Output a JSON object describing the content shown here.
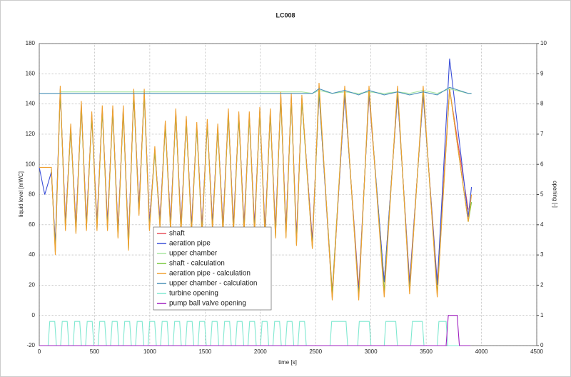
{
  "chart_data": {
    "type": "line",
    "title": "LC008",
    "x_label": "time [s]",
    "y_label": "liquid level [mWC]",
    "y2_label": "opening [-]",
    "xlim": [
      0,
      4500
    ],
    "xticks": [
      0,
      500,
      1000,
      1500,
      2000,
      2500,
      3000,
      3500,
      4000,
      4500
    ],
    "ylim": [
      -20,
      180
    ],
    "yticks": [
      -20,
      0,
      20,
      40,
      60,
      80,
      100,
      120,
      140,
      160,
      180
    ],
    "y2lim": [
      0,
      10
    ],
    "y2ticks": [
      0,
      1,
      2,
      3,
      4,
      5,
      6,
      7,
      8,
      9,
      10
    ],
    "grid": true,
    "series": [
      {
        "name": "shaft",
        "color": "#e8505b",
        "x": [
          0,
          50,
          110,
          145,
          190,
          237,
          285,
          332,
          380,
          427,
          475,
          522,
          570,
          617,
          665,
          712,
          760,
          807,
          855,
          902,
          950,
          997,
          1045,
          1092,
          1140,
          1187,
          1235,
          1282,
          1330,
          1377,
          1425,
          1472,
          1520,
          1567,
          1615,
          1662,
          1710,
          1757,
          1805,
          1852,
          1900,
          1947,
          1995,
          2042,
          2090,
          2137,
          2185,
          2232,
          2280,
          2327,
          2375,
          2470,
          2531,
          2650,
          2763,
          2890,
          2983,
          3120,
          3241,
          3350,
          3473,
          3600,
          3712,
          3880,
          3910
        ],
        "values": [
          null,
          null,
          95,
          46,
          148,
          62,
          123,
          60,
          138,
          62,
          131,
          62,
          135,
          62,
          135,
          57,
          135,
          49,
          146,
          72,
          146,
          62,
          108,
          64,
          125,
          62,
          133,
          60,
          128,
          60,
          124,
          59,
          126,
          62,
          123,
          60,
          133,
          60,
          131,
          60,
          131,
          60,
          134,
          57,
          133,
          57,
          144,
          57,
          143,
          52,
          142,
          50,
          147,
          16,
          146,
          18,
          146,
          22,
          146,
          22,
          146,
          22,
          150,
          70,
          null
        ]
      },
      {
        "name": "aeration pipe",
        "color": "#3b4fd8",
        "x": [
          0,
          50,
          110,
          145,
          190,
          237,
          285,
          332,
          380,
          427,
          475,
          522,
          570,
          617,
          665,
          712,
          760,
          807,
          855,
          902,
          950,
          997,
          1045,
          1092,
          1140,
          1187,
          1235,
          1282,
          1330,
          1377,
          1425,
          1472,
          1520,
          1567,
          1615,
          1662,
          1710,
          1757,
          1805,
          1852,
          1900,
          1947,
          1995,
          2042,
          2090,
          2137,
          2185,
          2232,
          2280,
          2327,
          2375,
          2470,
          2531,
          2650,
          2763,
          2890,
          2983,
          3120,
          3241,
          3350,
          3473,
          3600,
          3712,
          3880,
          3910
        ],
        "values": [
          98,
          80,
          95,
          47,
          150,
          60,
          125,
          58,
          140,
          60,
          133,
          60,
          137,
          60,
          137,
          55,
          137,
          47,
          148,
          70,
          148,
          60,
          110,
          62,
          127,
          60,
          135,
          58,
          130,
          58,
          126,
          57,
          128,
          60,
          125,
          58,
          135,
          58,
          133,
          58,
          133,
          58,
          136,
          55,
          135,
          55,
          146,
          55,
          145,
          50,
          144,
          48,
          148,
          12,
          147,
          15,
          148,
          22,
          147,
          20,
          147,
          20,
          170,
          65,
          85
        ]
      },
      {
        "name": "upper chamber",
        "color": "#a8e6a0",
        "x": [
          0,
          50,
          110,
          145,
          190,
          237,
          285,
          332,
          380,
          427,
          475,
          522,
          570,
          617,
          665,
          712,
          760,
          807,
          855,
          902,
          950,
          997,
          1045,
          1092,
          1140,
          1187,
          1235,
          1282,
          1330,
          1377,
          1425,
          1472,
          1520,
          1567,
          1615,
          1662,
          1710,
          1757,
          1805,
          1852,
          1900,
          1947,
          1995,
          2042,
          2090,
          2137,
          2185,
          2232,
          2280,
          2327,
          2375,
          2470,
          2531,
          2650,
          2763,
          2890,
          2983,
          3120,
          3241,
          3350,
          3473,
          3600,
          3712,
          3880,
          3910
        ],
        "values": [
          null,
          null,
          null,
          null,
          148,
          148,
          148,
          148,
          148,
          148,
          148,
          148,
          148,
          148,
          148,
          148,
          148,
          148,
          148,
          148,
          148,
          148,
          148,
          148,
          148,
          148,
          148,
          148,
          148,
          148,
          148,
          148,
          148,
          148,
          148,
          148,
          148,
          148,
          148,
          148,
          148,
          148,
          148,
          148,
          148,
          148,
          148,
          148,
          148,
          148,
          148,
          147,
          149,
          147,
          148,
          147,
          148,
          147,
          148,
          147,
          149,
          147,
          150,
          147,
          147
        ]
      },
      {
        "name": "shaft - calculation",
        "color": "#78c83a",
        "x": [
          0,
          50,
          110,
          145,
          190,
          237,
          285,
          332,
          380,
          427,
          475,
          522,
          570,
          617,
          665,
          712,
          760,
          807,
          855,
          902,
          950,
          997,
          1045,
          1092,
          1140,
          1187,
          1235,
          1282,
          1330,
          1377,
          1425,
          1472,
          1520,
          1567,
          1615,
          1662,
          1710,
          1757,
          1805,
          1852,
          1900,
          1947,
          1995,
          2042,
          2090,
          2137,
          2185,
          2232,
          2280,
          2327,
          2375,
          2470,
          2531,
          2650,
          2763,
          2890,
          2983,
          3120,
          3241,
          3350,
          3473,
          3600,
          3712,
          3880,
          3910
        ],
        "values": [
          null,
          null,
          97,
          42,
          149,
          57,
          124,
          55,
          139,
          57,
          132,
          57,
          136,
          57,
          136,
          52,
          136,
          44,
          147,
          67,
          147,
          57,
          109,
          59,
          126,
          57,
          134,
          55,
          129,
          55,
          125,
          54,
          127,
          57,
          124,
          55,
          134,
          55,
          132,
          55,
          132,
          55,
          135,
          52,
          134,
          52,
          145,
          52,
          144,
          47,
          143,
          45,
          150,
          14,
          150,
          12,
          150,
          16,
          150,
          16,
          150,
          14,
          150,
          62,
          75
        ]
      },
      {
        "name": "aeration pipe - calculation",
        "color": "#f0a030",
        "x": [
          0,
          50,
          110,
          145,
          190,
          237,
          285,
          332,
          380,
          427,
          475,
          522,
          570,
          617,
          665,
          712,
          760,
          807,
          855,
          902,
          950,
          997,
          1045,
          1092,
          1140,
          1187,
          1235,
          1282,
          1330,
          1377,
          1425,
          1472,
          1520,
          1567,
          1615,
          1662,
          1710,
          1757,
          1805,
          1852,
          1900,
          1947,
          1995,
          2042,
          2090,
          2137,
          2185,
          2232,
          2280,
          2327,
          2375,
          2470,
          2531,
          2650,
          2763,
          2890,
          2983,
          3120,
          3241,
          3350,
          3473,
          3600,
          3712,
          3880,
          3910
        ],
        "values": [
          98,
          98,
          98,
          40,
          152,
          56,
          127,
          54,
          142,
          56,
          135,
          56,
          139,
          56,
          139,
          51,
          139,
          43,
          150,
          66,
          150,
          56,
          112,
          58,
          129,
          56,
          137,
          54,
          132,
          54,
          128,
          53,
          130,
          56,
          127,
          54,
          137,
          54,
          135,
          54,
          135,
          54,
          138,
          51,
          137,
          51,
          148,
          51,
          147,
          46,
          146,
          44,
          154,
          10,
          152,
          10,
          152,
          12,
          152,
          14,
          152,
          12,
          150,
          62,
          80
        ]
      },
      {
        "name": "upper chamber - calculation",
        "color": "#4a90b8",
        "x": [
          0,
          50,
          110,
          145,
          190,
          237,
          285,
          332,
          380,
          427,
          475,
          522,
          570,
          617,
          665,
          712,
          760,
          807,
          855,
          902,
          950,
          997,
          1045,
          1092,
          1140,
          1187,
          1235,
          1282,
          1330,
          1377,
          1425,
          1472,
          1520,
          1567,
          1615,
          1662,
          1710,
          1757,
          1805,
          1852,
          1900,
          1947,
          1995,
          2042,
          2090,
          2137,
          2185,
          2232,
          2280,
          2327,
          2375,
          2470,
          2531,
          2650,
          2763,
          2890,
          2983,
          3120,
          3241,
          3350,
          3473,
          3600,
          3712,
          3880,
          3910
        ],
        "values": [
          147,
          147,
          147,
          147,
          147,
          147,
          147,
          147,
          147,
          147,
          147,
          147,
          147,
          147,
          147,
          147,
          147,
          147,
          147,
          147,
          147,
          147,
          147,
          147,
          147,
          147,
          147,
          147,
          147,
          147,
          147,
          147,
          147,
          147,
          147,
          147,
          147,
          147,
          147,
          147,
          147,
          147,
          147,
          147,
          147,
          147,
          147,
          147,
          147,
          147,
          147,
          147,
          150,
          147,
          149,
          146,
          149,
          146,
          148,
          146,
          148,
          146,
          151,
          147,
          147
        ]
      },
      {
        "name": "turbine opening",
        "color": "#7fe8d0",
        "axis": "y2",
        "x": [
          0,
          80,
          95,
          140,
          155,
          193,
          208,
          253,
          268,
          306,
          321,
          366,
          381,
          419,
          434,
          479,
          494,
          532,
          547,
          592,
          607,
          645,
          660,
          705,
          720,
          758,
          773,
          818,
          833,
          871,
          886,
          931,
          946,
          984,
          999,
          1044,
          1059,
          1097,
          1112,
          1157,
          1172,
          1210,
          1225,
          1270,
          1285,
          1323,
          1338,
          1383,
          1398,
          1436,
          1451,
          1496,
          1511,
          1549,
          1564,
          1609,
          1624,
          1662,
          1677,
          1722,
          1737,
          1775,
          1790,
          1835,
          1850,
          1888,
          1903,
          1948,
          1963,
          2001,
          2016,
          2061,
          2076,
          2114,
          2129,
          2174,
          2189,
          2227,
          2242,
          2287,
          2302,
          2340,
          2355,
          2400,
          2415,
          2630,
          2645,
          2775,
          2790,
          2880,
          2895,
          2985,
          3000,
          3120,
          3135,
          3225,
          3240,
          3360,
          3375,
          3465,
          3480,
          3600,
          3615,
          3680,
          3695,
          3900
        ],
        "values": [
          0,
          0,
          0.8,
          0.8,
          0,
          0,
          0.8,
          0.8,
          0,
          0,
          0.8,
          0.8,
          0,
          0,
          0.8,
          0.8,
          0,
          0,
          0.8,
          0.8,
          0,
          0,
          0.8,
          0.8,
          0,
          0,
          0.8,
          0.8,
          0,
          0,
          0.8,
          0.8,
          0,
          0,
          0.8,
          0.8,
          0,
          0,
          0.8,
          0.8,
          0,
          0,
          0.8,
          0.8,
          0,
          0,
          0.8,
          0.8,
          0,
          0,
          0.8,
          0.8,
          0,
          0,
          0.8,
          0.8,
          0,
          0,
          0.8,
          0.8,
          0,
          0,
          0.8,
          0.8,
          0,
          0,
          0.8,
          0.8,
          0,
          0,
          0.8,
          0.8,
          0,
          0,
          0.8,
          0.8,
          0,
          0,
          0.8,
          0.8,
          0,
          0,
          0.8,
          0.8,
          0,
          0,
          0.8,
          0.8,
          0,
          0,
          0.8,
          0.8,
          0,
          0,
          0.8,
          0.8,
          0,
          0,
          0.8,
          0.8,
          0,
          0,
          0.8,
          0.8,
          0,
          0
        ]
      },
      {
        "name": "pump ball valve opening",
        "color": "#a020c0",
        "axis": "y2",
        "x": [
          0,
          3680,
          3700,
          3780,
          3800,
          3900
        ],
        "values": [
          0,
          0,
          1,
          1,
          0,
          0
        ]
      }
    ]
  }
}
